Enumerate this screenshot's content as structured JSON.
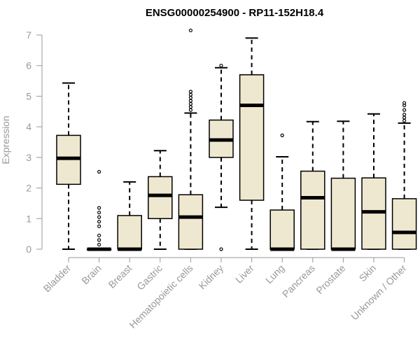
{
  "chart_data": {
    "type": "boxplot",
    "title": "ENSG00000254900 - RP11-152H18.4",
    "xlabel": "",
    "ylabel": "Expression",
    "ylim": [
      0,
      7
    ],
    "yticks": [
      0,
      1,
      2,
      3,
      4,
      5,
      6,
      7
    ],
    "box_fill": "#efe8d0",
    "categories": [
      "Bladder",
      "Brain",
      "Breast",
      "Gastric",
      "Hematopoietic cells",
      "Kidney",
      "Liver",
      "Lung",
      "Pancreas",
      "Prostate",
      "Skin",
      "Unknown / Other"
    ],
    "boxes": [
      {
        "min": 0,
        "q1": 2.12,
        "median": 2.97,
        "q3": 3.72,
        "max": 5.43,
        "outliers": []
      },
      {
        "min": 0,
        "q1": 0,
        "median": 0,
        "q3": 0,
        "max": 0,
        "outliers": [
          0.15,
          0.3,
          0.45,
          0.75,
          0.9,
          1.05,
          1.2,
          1.35,
          2.53
        ]
      },
      {
        "min": 0,
        "q1": 0,
        "median": 0,
        "q3": 1.1,
        "max": 2.2,
        "outliers": []
      },
      {
        "min": 0,
        "q1": 1.0,
        "median": 1.76,
        "q3": 2.37,
        "max": 3.22,
        "outliers": []
      },
      {
        "min": 0,
        "q1": 0,
        "median": 1.05,
        "q3": 1.78,
        "max": 4.45,
        "outliers": [
          4.55,
          4.65,
          4.75,
          4.85,
          4.95,
          5.05,
          5.15,
          7.15
        ]
      },
      {
        "min": 1.37,
        "q1": 3.0,
        "median": 3.57,
        "q3": 4.22,
        "max": 5.93,
        "outliers": [
          6.0,
          0
        ]
      },
      {
        "min": 0,
        "q1": 1.6,
        "median": 4.7,
        "q3": 5.7,
        "max": 6.9,
        "outliers": []
      },
      {
        "min": 0,
        "q1": 0,
        "median": 0,
        "q3": 1.28,
        "max": 3.02,
        "outliers": [
          3.72
        ]
      },
      {
        "min": 0,
        "q1": 0,
        "median": 1.68,
        "q3": 2.55,
        "max": 4.17,
        "outliers": []
      },
      {
        "min": 0,
        "q1": 0,
        "median": 0,
        "q3": 2.32,
        "max": 4.18,
        "outliers": []
      },
      {
        "min": 0,
        "q1": 0,
        "median": 1.22,
        "q3": 2.33,
        "max": 4.42,
        "outliers": []
      },
      {
        "min": 0,
        "q1": 0,
        "median": 0.55,
        "q3": 1.65,
        "max": 4.12,
        "outliers": [
          4.2,
          4.3,
          4.4,
          4.55,
          4.7,
          4.78
        ]
      }
    ]
  }
}
